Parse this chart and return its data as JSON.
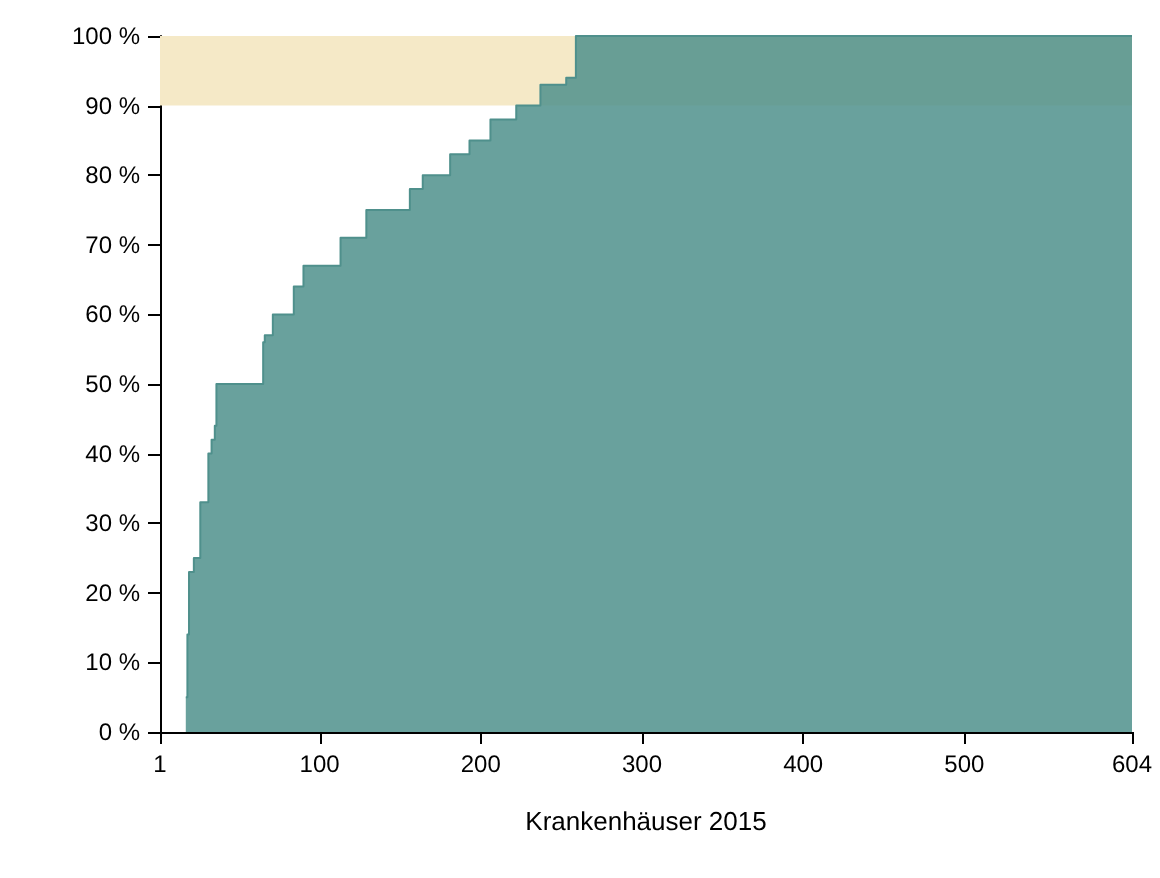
{
  "chart_data": {
    "type": "step",
    "xlabel": "Krankenhäuser 2015",
    "series": [
      {
        "color": "#4f908c",
        "x": [
          17,
          18,
          19,
          22,
          26,
          31,
          33,
          35,
          36,
          65,
          66,
          71,
          84,
          90,
          113,
          129,
          156,
          164,
          181,
          193,
          206,
          222,
          237,
          253,
          259,
          604
        ],
        "values": [
          5,
          14,
          23,
          25,
          33,
          40,
          42,
          44,
          50,
          56,
          57,
          60,
          64,
          67,
          71,
          75,
          78,
          80,
          83,
          85,
          88,
          90,
          93,
          94,
          100,
          100
        ]
      }
    ],
    "xlim": [
      1,
      604
    ],
    "xticks": [
      1,
      100,
      200,
      300,
      400,
      500,
      604
    ],
    "ylim": [
      0,
      100
    ],
    "yticks": [
      {
        "value": 0,
        "label": "0 %"
      },
      {
        "value": 10,
        "label": "10 %"
      },
      {
        "value": 20,
        "label": "20 %"
      },
      {
        "value": 30,
        "label": "30 %"
      },
      {
        "value": 40,
        "label": "40 %"
      },
      {
        "value": 50,
        "label": "50 %"
      },
      {
        "value": 60,
        "label": "60 %"
      },
      {
        "value": 70,
        "label": "70 %"
      },
      {
        "value": 80,
        "label": "80 %"
      },
      {
        "value": 90,
        "label": "90 %"
      },
      {
        "value": 100,
        "label": "100 %"
      }
    ],
    "bands": [
      {
        "axis": "y",
        "from": 90,
        "to": 100,
        "color": "#f5e9c7"
      }
    ],
    "grid": false
  }
}
